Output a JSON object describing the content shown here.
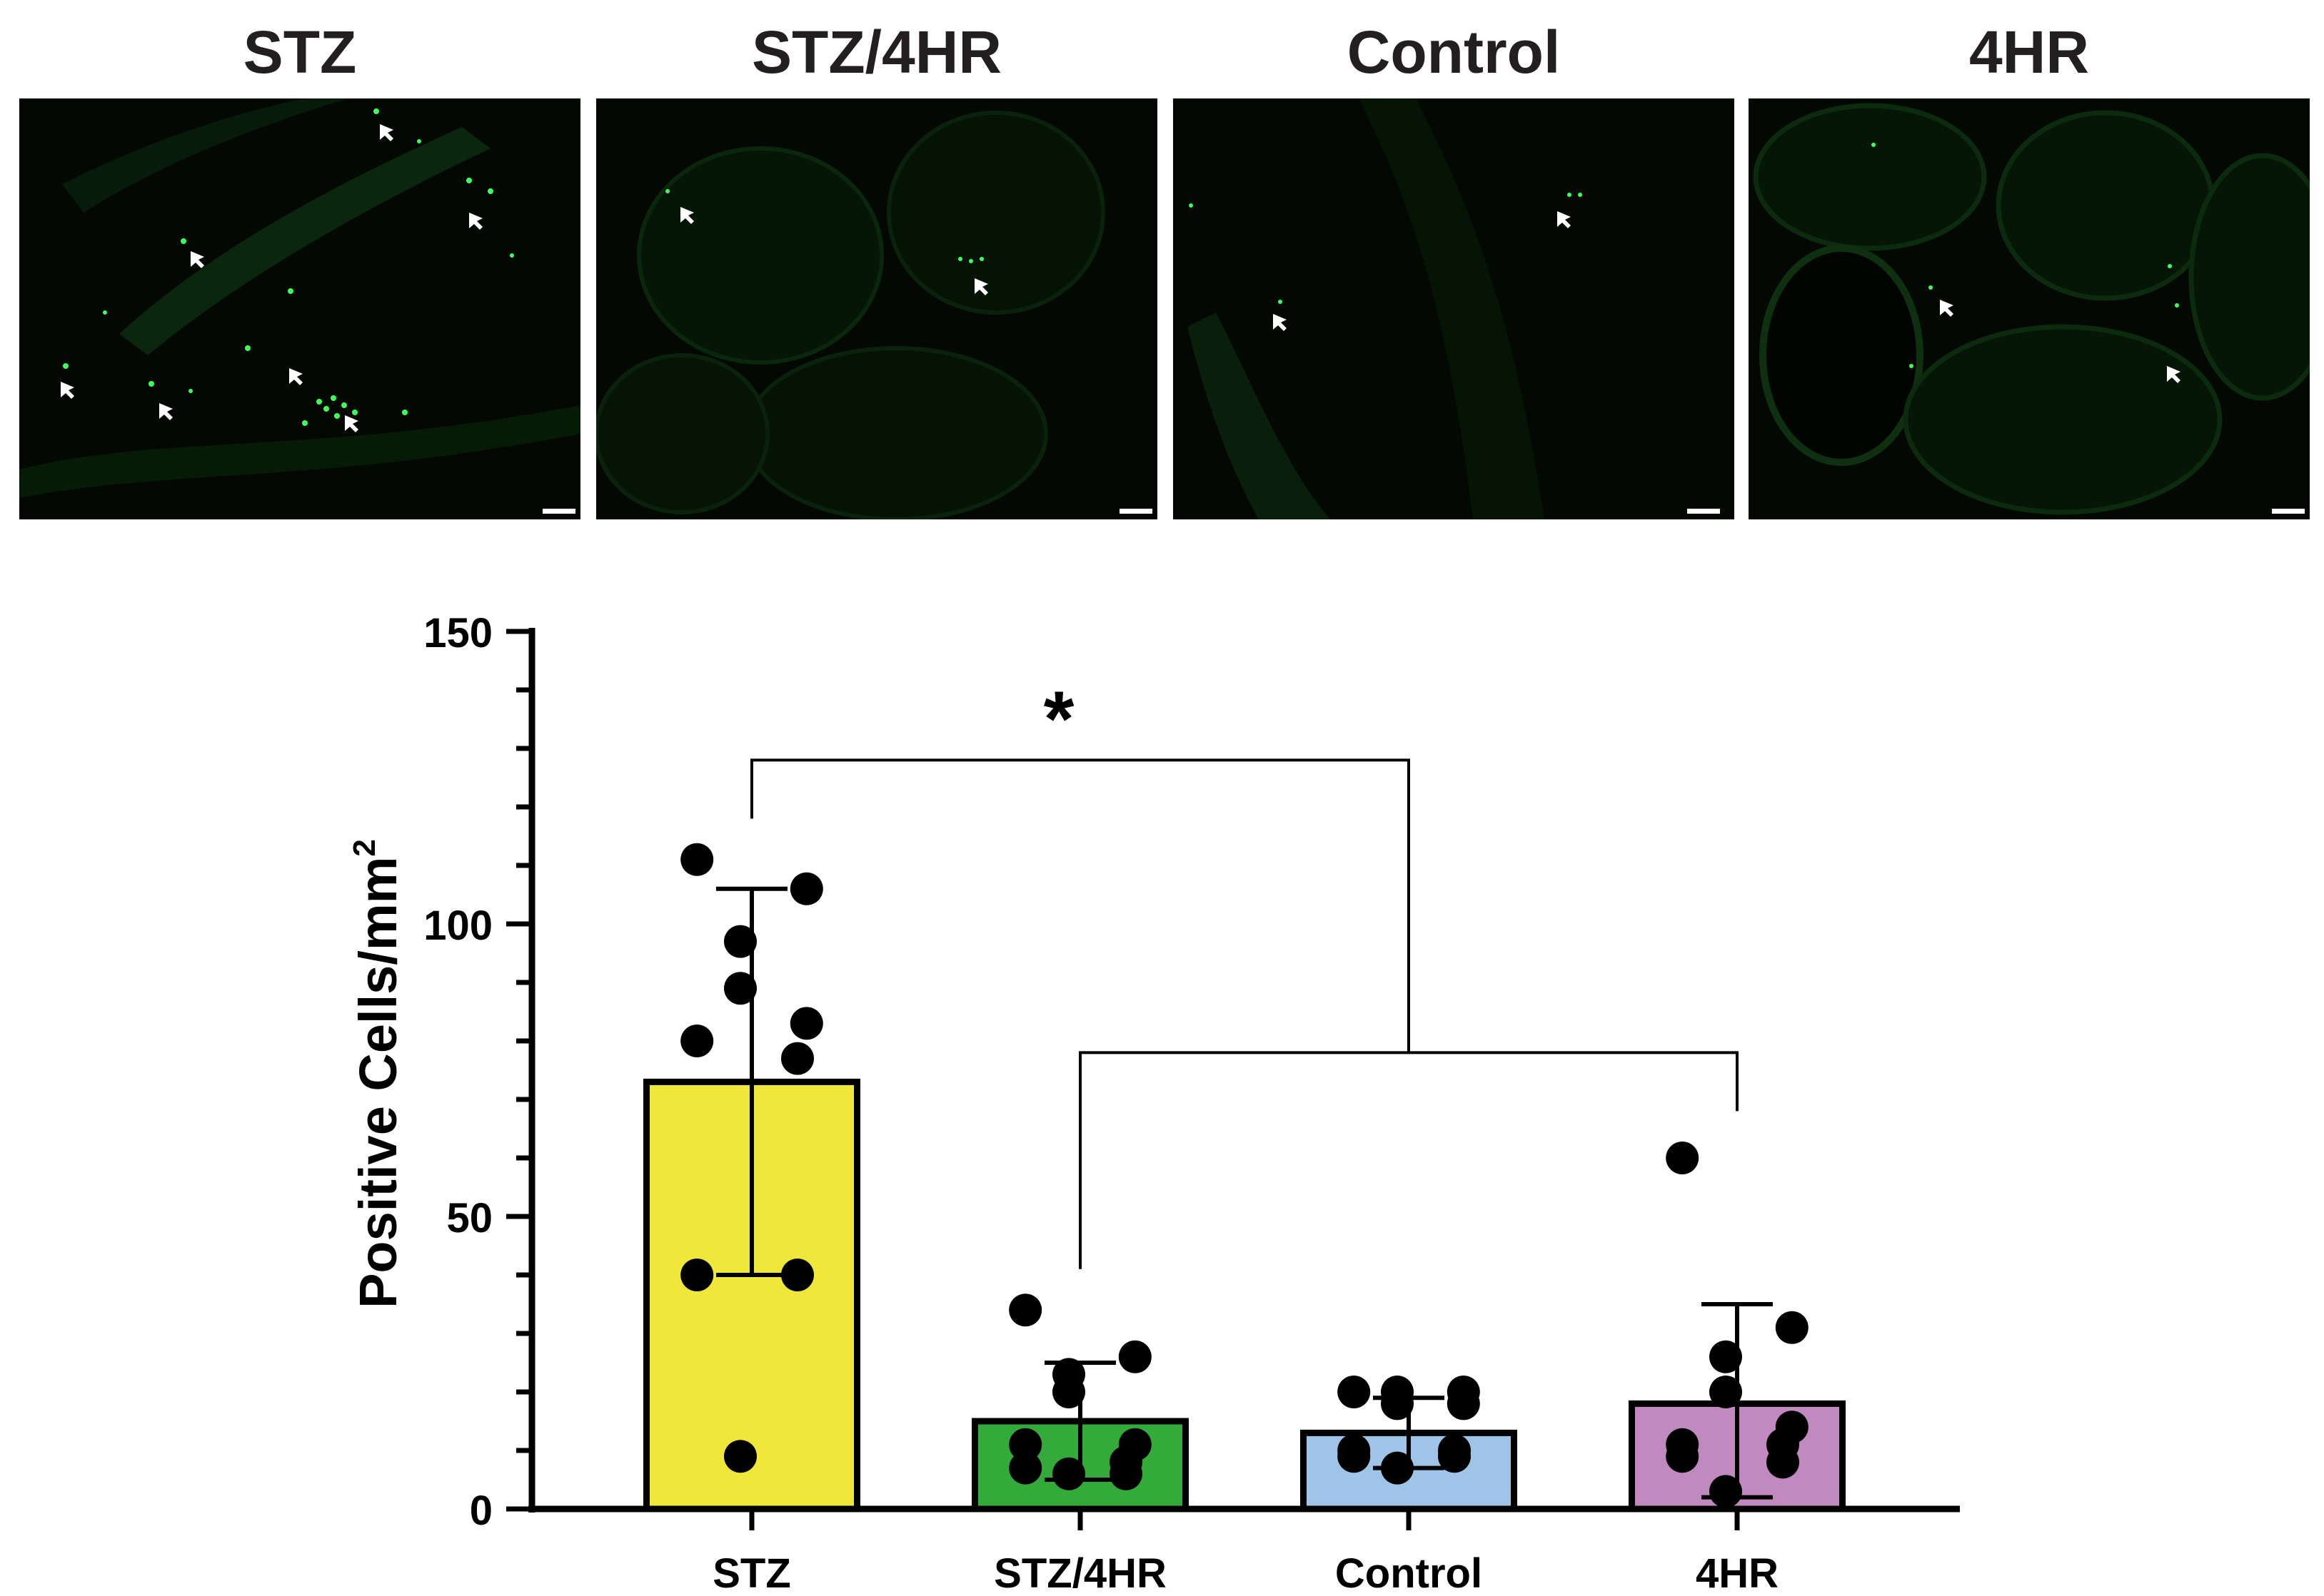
{
  "panels": [
    {
      "label": "STZ",
      "scale_bar": true
    },
    {
      "label": "STZ/4HR",
      "scale_bar": true
    },
    {
      "label": "Control",
      "scale_bar": true
    },
    {
      "label": "4HR",
      "scale_bar": true
    }
  ],
  "colors": {
    "stz": "#efe83a",
    "stz4hr": "#33aa3a",
    "control": "#a0c4e8",
    "4hr": "#c08ac0",
    "micro_bg": "#030803",
    "fluorescence": "#33ff55",
    "axis": "#000000"
  },
  "chart_data": {
    "type": "bar",
    "categories": [
      "STZ",
      "STZ/4HR",
      "Control",
      "4HR"
    ],
    "means": [
      73,
      15,
      13,
      18
    ],
    "error_upper": [
      106,
      25,
      19,
      35
    ],
    "error_lower": [
      40,
      5,
      7,
      2
    ],
    "points": [
      [
        111,
        106,
        97,
        89,
        83,
        80,
        77,
        40,
        40,
        9
      ],
      [
        34,
        26,
        23,
        20,
        11,
        11,
        8,
        7,
        6,
        6
      ],
      [
        20,
        20,
        20,
        18,
        18,
        10,
        10,
        9,
        9,
        7
      ],
      [
        60,
        31,
        26,
        20,
        14,
        11,
        11,
        9,
        8,
        3
      ]
    ],
    "ylabel": "Positive Cells/mm",
    "ylabel_sup": "2",
    "ylim": [
      0,
      150
    ],
    "yticks": [
      0,
      50,
      100,
      150
    ],
    "significance": {
      "label": "*",
      "group_a": "STZ",
      "group_b": [
        "STZ/4HR",
        "Control",
        "4HR"
      ]
    }
  }
}
